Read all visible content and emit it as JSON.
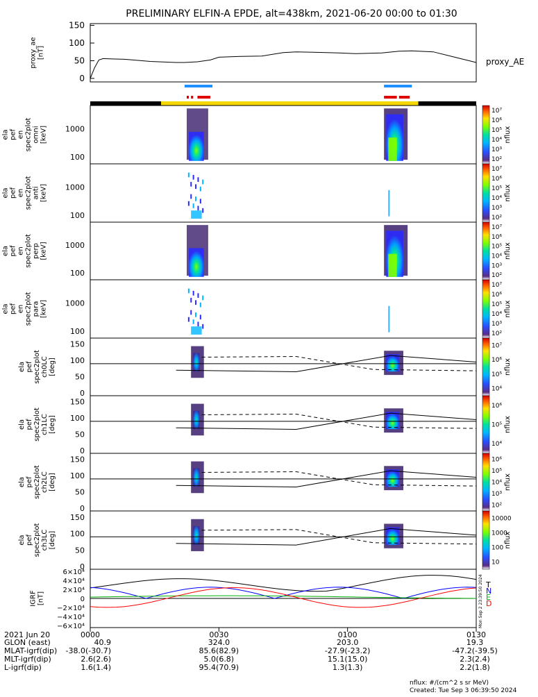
{
  "title": "PRELIMINARY ELFIN-A EPDE, alt=438km, 2021-06-20 00:00 to 01:30",
  "chart_data": [
    {
      "type": "line",
      "panel": "proxy_ae",
      "ylabel": [
        "proxy_ae",
        "[nT]"
      ],
      "series_label": "proxy_AE",
      "yticks": [
        0,
        50,
        100,
        150
      ],
      "ylim": [
        -10,
        155
      ],
      "x_min": [
        0,
        1,
        2,
        3,
        5,
        8,
        10,
        14,
        18,
        20,
        22,
        25,
        28,
        30,
        35,
        40,
        45,
        48,
        52,
        58,
        62,
        68,
        72,
        75,
        80,
        85,
        90
      ],
      "values": [
        0,
        30,
        52,
        56,
        55,
        54,
        52,
        48,
        46,
        45,
        45,
        47,
        52,
        60,
        62,
        63,
        73,
        75,
        74,
        72,
        70,
        72,
        77,
        78,
        75,
        60,
        45
      ]
    },
    {
      "type": "heatmap",
      "panel": "omni",
      "ylabel": [
        "ela",
        "pef",
        "en",
        "spec2plot",
        "omni",
        "[keV]"
      ],
      "yticks": [
        "100",
        "1000"
      ],
      "log_scale": true,
      "colorbar_label": "nflux",
      "colorbar_ticks": [
        "10²",
        "10³",
        "10⁴",
        "10⁵",
        "10⁶",
        "10⁷"
      ]
    },
    {
      "type": "heatmap",
      "panel": "anti",
      "ylabel": [
        "ela",
        "pef",
        "en",
        "spec2plot",
        "anti",
        "[keV]"
      ],
      "yticks": [
        "100",
        "1000"
      ],
      "log_scale": true,
      "colorbar_label": "nflux",
      "colorbar_ticks": [
        "10²",
        "10³",
        "10⁴",
        "10⁵",
        "10⁶",
        "10⁷"
      ]
    },
    {
      "type": "heatmap",
      "panel": "perp",
      "ylabel": [
        "ela",
        "pef",
        "en",
        "spec2plot",
        "perp",
        "[keV]"
      ],
      "yticks": [
        "100",
        "1000"
      ],
      "log_scale": true,
      "colorbar_label": "nflux",
      "colorbar_ticks": [
        "10²",
        "10³",
        "10⁴",
        "10⁵",
        "10⁶",
        "10⁷"
      ]
    },
    {
      "type": "heatmap",
      "panel": "para",
      "ylabel": [
        "ela",
        "pef",
        "en",
        "spec2plot",
        "para",
        "[keV]"
      ],
      "yticks": [
        "100",
        "1000"
      ],
      "log_scale": true,
      "colorbar_label": "nflux",
      "colorbar_ticks": [
        "10²",
        "10³",
        "10⁴",
        "10⁵",
        "10⁶",
        "10⁷"
      ]
    },
    {
      "type": "heatmap",
      "panel": "ch0LC",
      "ylabel": [
        "ela",
        "pef",
        "spec2plot",
        "ch0LC",
        "[deg]"
      ],
      "yticks": [
        "0",
        "50",
        "100",
        "150"
      ],
      "colorbar_label": "nflux",
      "colorbar_ticks": [
        "10⁴",
        "10⁵",
        "10⁶",
        "10⁷"
      ]
    },
    {
      "type": "heatmap",
      "panel": "ch1LC",
      "ylabel": [
        "ela",
        "pef",
        "spec2plot",
        "ch1LC",
        "[deg]"
      ],
      "yticks": [
        "0",
        "50",
        "100",
        "150"
      ],
      "colorbar_label": "nflux",
      "colorbar_ticks": [
        "10⁴",
        "10⁵",
        "10⁶"
      ]
    },
    {
      "type": "heatmap",
      "panel": "ch2LC",
      "ylabel": [
        "ela",
        "pef",
        "spec2plot",
        "ch2LC",
        "[deg]"
      ],
      "yticks": [
        "0",
        "50",
        "100",
        "150"
      ],
      "colorbar_label": "nflux",
      "colorbar_ticks": [
        "10²",
        "10³",
        "10⁴",
        "10⁵",
        "10⁶"
      ]
    },
    {
      "type": "heatmap",
      "panel": "ch3LC",
      "ylabel": [
        "ela",
        "pef",
        "spec2plot",
        "ch3LC",
        "[deg]"
      ],
      "yticks": [
        "0",
        "50",
        "100",
        "150"
      ],
      "colorbar_label": "nflux",
      "colorbar_ticks": [
        "10",
        "100",
        "1000",
        "10000"
      ]
    },
    {
      "type": "line",
      "panel": "IGRF",
      "ylabel": [
        "IGRF",
        "[nT]"
      ],
      "yticks": [
        "−6×10⁴",
        "−4×10⁴",
        "−2×10⁴",
        "0",
        "2×10⁴",
        "4×10⁴",
        "6×10⁴"
      ],
      "ylim": [
        -65000,
        65000
      ],
      "legend": [
        "T",
        "N",
        "E",
        "D"
      ],
      "series_colors": [
        "#000000",
        "#0000ff",
        "#00b000",
        "#ff0000"
      ]
    }
  ],
  "time_axis": {
    "row_labels": [
      "2021 Jun 20",
      "GLON (east)",
      "MLAT-igrf(dip)",
      "MLT-igrf(dip)",
      "L-igrf(dip)"
    ],
    "first_values": [
      "",
      "40.9",
      "-38.0(-30.7)",
      "2.6(2.6)",
      "1.6(1.4)"
    ],
    "columns": [
      {
        "time": "0000",
        "values": []
      },
      {
        "time": "0030",
        "values": [
          "324.0",
          "85.6(82.9)",
          "5.0(6.8)",
          "95.4(70.9)"
        ]
      },
      {
        "time": "0100",
        "values": [
          "203.0",
          "-27.9(-23.2)",
          "15.1(15.0)",
          "1.3(1.3)"
        ]
      },
      {
        "time": "0130",
        "values": [
          "19.3",
          "-47.2(-39.5)",
          "2.3(2.4)",
          "2.2(1.8)"
        ]
      }
    ]
  },
  "footer": {
    "units": "nflux: #/(cm^2 s sr MeV)",
    "created": "Created: Tue Sep  3 06:39:50 2024"
  },
  "side_stamp": "Mon Sep  2 23:39:50 2024",
  "colors": {
    "sunlit_bar": "#f5d800",
    "dark_bar": "#000000",
    "blue_marker": "#1e90ff",
    "red_marker": "#e00000"
  }
}
